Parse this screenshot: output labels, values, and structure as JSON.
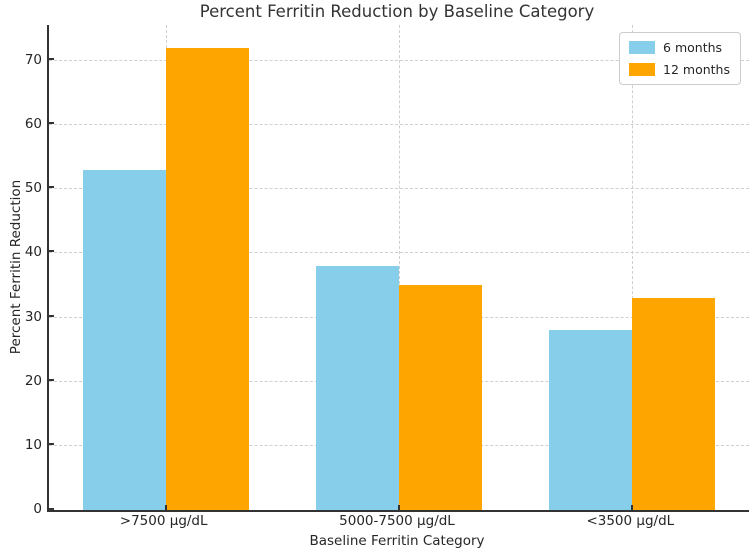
{
  "chart_data": {
    "type": "bar",
    "title": "Percent Ferritin Reduction by Baseline Category",
    "xlabel": "Baseline Ferritin Category",
    "ylabel": "Percent Ferritin Reduction",
    "categories": [
      ">7500 μg/dL",
      "5000-7500 μg/dL",
      "<3500 μg/dL"
    ],
    "series": [
      {
        "name": "6 months",
        "color": "#87CEEB",
        "values": [
          53,
          38,
          28
        ]
      },
      {
        "name": "12 months",
        "color": "#FFA500",
        "values": [
          72,
          35,
          33
        ]
      }
    ],
    "ylim": [
      0,
      75.6
    ],
    "yticks": [
      0,
      10,
      20,
      30,
      40,
      50,
      60,
      70
    ],
    "grid": true,
    "grid_style": "dashed",
    "grid_color": "#cfcfcf",
    "legend_position": "upper right",
    "spine_color": "#333333",
    "background": "#ffffff"
  }
}
